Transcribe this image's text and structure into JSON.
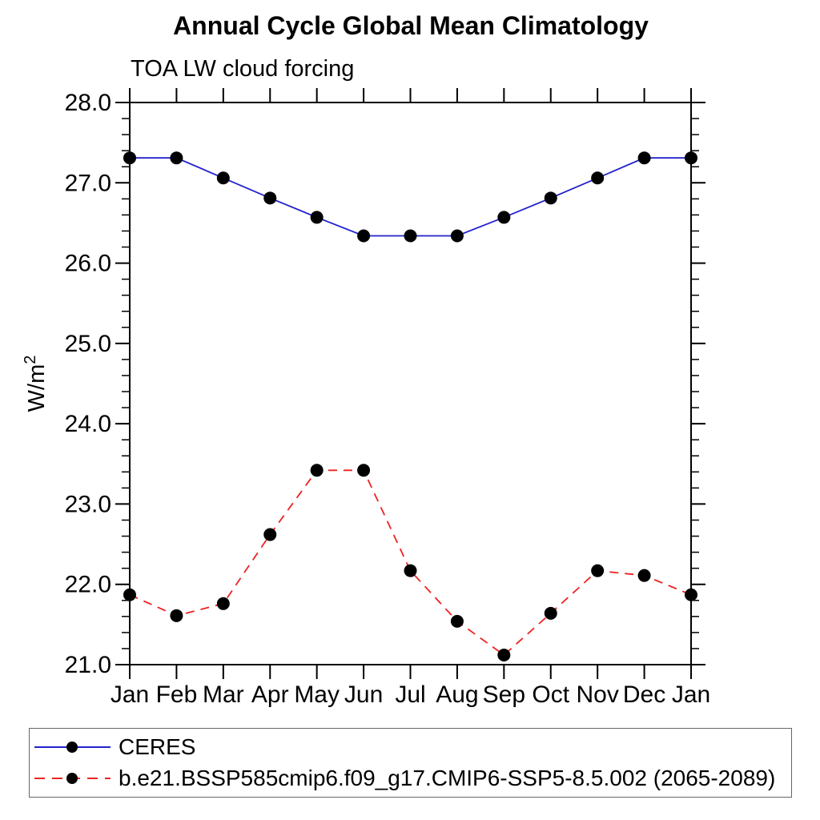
{
  "chart_data": {
    "type": "line",
    "title": "Annual Cycle Global Mean Climatology",
    "subtitle": "TOA LW cloud forcing",
    "ylabel_base": "W/m",
    "ylabel_exponent": "2",
    "x_tick_labels": [
      "Jan",
      "Feb",
      "Mar",
      "Apr",
      "May",
      "Jun",
      "Jul",
      "Aug",
      "Sep",
      "Oct",
      "Nov",
      "Dec",
      "Jan"
    ],
    "y_tick_labels": [
      "21.0",
      "22.0",
      "23.0",
      "24.0",
      "25.0",
      "26.0",
      "27.0",
      "28.0"
    ],
    "ylim": [
      21.0,
      28.0
    ],
    "y_major_step": 1.0,
    "y_minor_step": 0.2,
    "grid": false,
    "legend_position": "bottom",
    "axis_color": "#000000",
    "series": [
      {
        "name": "CERES",
        "line_style": "solid",
        "line_color": "#2222cc",
        "marker": "filled-circle",
        "marker_color": "#000000",
        "values": [
          27.31,
          27.31,
          27.06,
          26.81,
          26.57,
          26.34,
          26.34,
          26.34,
          26.57,
          26.81,
          27.06,
          27.31,
          27.31
        ]
      },
      {
        "name": "b.e21.BSSP585cmip6.f09_g17.CMIP6-SSP5-8.5.002 (2065-2089)",
        "line_style": "dashed",
        "line_color": "#ee2222",
        "marker": "filled-circle",
        "marker_color": "#000000",
        "values": [
          21.87,
          21.61,
          21.76,
          22.62,
          23.42,
          23.42,
          22.17,
          21.54,
          21.12,
          21.64,
          22.17,
          22.11,
          21.87
        ]
      }
    ]
  }
}
